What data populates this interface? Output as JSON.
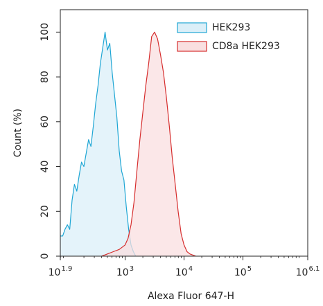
{
  "chart_data": {
    "type": "area",
    "xlabel": "Alexa Fluor 647-H",
    "ylabel": "Count (%)",
    "xscale": "log10",
    "xlim_log10": [
      1.9,
      6.1
    ],
    "ylim": [
      0,
      110
    ],
    "x_ticks": [
      {
        "base": "10",
        "exp": "1.9"
      },
      {
        "base": "10",
        "exp": "3"
      },
      {
        "base": "10",
        "exp": "4"
      },
      {
        "base": "10",
        "exp": "5"
      },
      {
        "base": "10",
        "exp": "6.1"
      }
    ],
    "y_ticks": [
      "0",
      "20",
      "40",
      "60",
      "80",
      "100"
    ],
    "legend": "top-right",
    "series": [
      {
        "name": "HEK293",
        "stroke": "#1ea6d4",
        "fill": "#dbeff8",
        "x_log10": [
          1.9,
          1.94,
          1.98,
          2.02,
          2.06,
          2.1,
          2.14,
          2.18,
          2.22,
          2.26,
          2.3,
          2.34,
          2.38,
          2.42,
          2.46,
          2.5,
          2.54,
          2.58,
          2.62,
          2.66,
          2.7,
          2.74,
          2.78,
          2.82,
          2.86,
          2.9,
          2.94,
          2.98,
          3.02,
          3.06,
          3.1,
          3.14,
          3.18
        ],
        "y": [
          9,
          9,
          12,
          14,
          12,
          25,
          32,
          29,
          36,
          42,
          40,
          46,
          52,
          49,
          58,
          68,
          76,
          86,
          93,
          100,
          92,
          95,
          82,
          72,
          62,
          47,
          38,
          34,
          22,
          12,
          5,
          2,
          0
        ]
      },
      {
        "name": "CD8a HEK293",
        "stroke": "#d62d2d",
        "fill": "#f9dfe0",
        "x_log10": [
          2.6,
          2.7,
          2.8,
          2.9,
          3.0,
          3.05,
          3.1,
          3.15,
          3.2,
          3.25,
          3.3,
          3.35,
          3.4,
          3.45,
          3.5,
          3.55,
          3.6,
          3.65,
          3.7,
          3.75,
          3.8,
          3.85,
          3.9,
          3.95,
          4.0,
          4.05,
          4.1,
          4.15,
          4.2
        ],
        "y": [
          0,
          1,
          2,
          3,
          5,
          8,
          14,
          24,
          38,
          52,
          64,
          76,
          86,
          98,
          100,
          97,
          90,
          82,
          71,
          58,
          44,
          32,
          20,
          10,
          5,
          2,
          1,
          0.5,
          0
        ]
      }
    ]
  }
}
